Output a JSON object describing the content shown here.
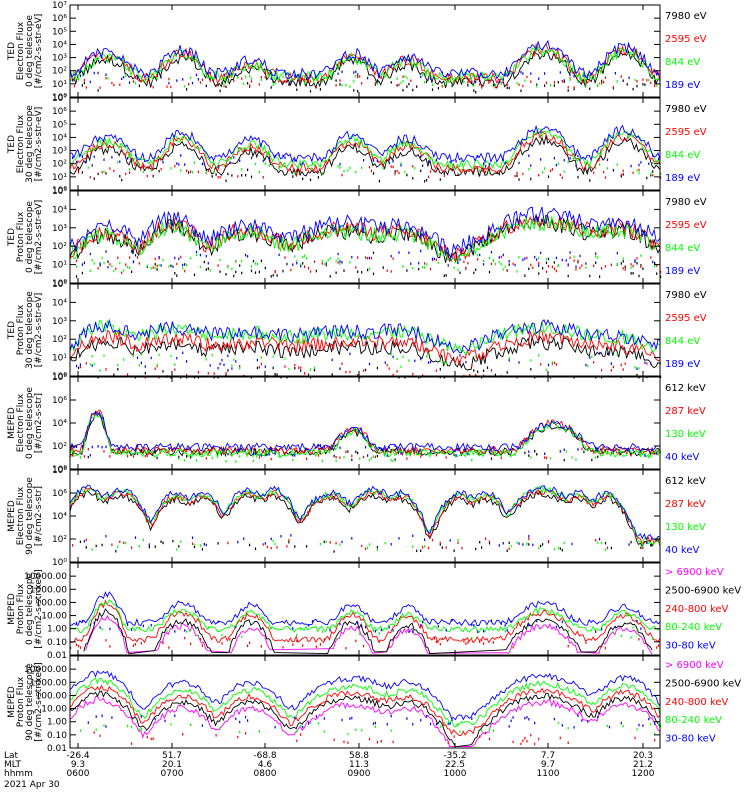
{
  "chart_data": {
    "type": "line",
    "x_footer": {
      "row_labels": [
        "Lat",
        "MLT",
        "hhmm",
        "2021 Apr 30"
      ],
      "ticks": [
        {
          "lat": "-26.4",
          "mlt": "9.3",
          "hhmm": "0600"
        },
        {
          "lat": "51.7",
          "mlt": "20.1",
          "hhmm": "0700"
        },
        {
          "lat": "-68.8",
          "mlt": "4.6",
          "hhmm": "0800"
        },
        {
          "lat": "58.8",
          "mlt": "11.3",
          "hhmm": "0900"
        },
        {
          "lat": "-35.2",
          "mlt": "22.5",
          "hhmm": "1000"
        },
        {
          "lat": "7.7",
          "mlt": "9.7",
          "hhmm": "1100"
        },
        {
          "lat": "20.3",
          "mlt": "21.2",
          "hhmm": "1200"
        }
      ]
    },
    "panels": [
      {
        "ylabel": [
          "TED",
          "Electron Flux",
          "0 deg telescope",
          "[#/cm2-s-str-eV]"
        ],
        "yscale": "log",
        "ylim": [
          1,
          10000000
        ],
        "yticks": [
          {
            "v": 1,
            "t": "10⁰"
          },
          {
            "v": 10,
            "t": "10¹"
          },
          {
            "v": 100,
            "t": "10²"
          },
          {
            "v": 1000,
            "t": "10³"
          },
          {
            "v": 10000,
            "t": "10⁴"
          },
          {
            "v": 100000,
            "t": "10⁵"
          },
          {
            "v": 1000000,
            "t": "10⁶"
          },
          {
            "v": 10000000,
            "t": "10⁷"
          }
        ],
        "base": 60,
        "noise": 7,
        "dots": 1.3,
        "peaks": [
          [
            0.062,
            2600.0,
            0.018
          ],
          [
            0.19,
            4000.0,
            0.015
          ],
          [
            0.307,
            600.0,
            0.016
          ],
          [
            0.478,
            2100.0,
            0.015
          ],
          [
            0.572,
            1200.0,
            0.016
          ],
          [
            0.802,
            8000.0,
            0.018
          ],
          [
            0.94,
            6000.0,
            0.016
          ]
        ],
        "channels": [
          {
            "name": "7980 eV",
            "color": "#000000",
            "scale": 0.25,
            "base_f": 0.2
          },
          {
            "name": "2595 eV",
            "color": "#ff0000",
            "scale": 0.6,
            "base_f": 0.45
          },
          {
            "name": "844 eV",
            "color": "#00ff00",
            "scale": 0.45,
            "base_f": 0.55
          },
          {
            "name": "189 eV",
            "color": "#0000ff",
            "scale": 1.0,
            "base_f": 1.0
          }
        ]
      },
      {
        "ylabel": [
          "TED",
          "Electron Flux",
          "30 deg telescope",
          "[#/cm2-s-str-eV]"
        ],
        "yscale": "log",
        "ylim": [
          1,
          10000000
        ],
        "yticks": [
          {
            "v": 1,
            "t": "10⁰"
          },
          {
            "v": 10,
            "t": "10¹"
          },
          {
            "v": 100,
            "t": "10²"
          },
          {
            "v": 1000,
            "t": "10³"
          },
          {
            "v": 10000,
            "t": "10⁴"
          },
          {
            "v": 100000,
            "t": "10⁵"
          },
          {
            "v": 1000000,
            "t": "10⁶"
          },
          {
            "v": 10000000,
            "t": "10⁷"
          }
        ],
        "base": 300,
        "noise": 5,
        "dots": 1.1,
        "peaks": [
          [
            0.062,
            10000.0,
            0.018
          ],
          [
            0.19,
            20000.0,
            0.015
          ],
          [
            0.307,
            6000.0,
            0.016
          ],
          [
            0.478,
            15000.0,
            0.015
          ],
          [
            0.572,
            8000.0,
            0.016
          ],
          [
            0.802,
            50000.0,
            0.018
          ],
          [
            0.94,
            40000.0,
            0.016
          ]
        ],
        "channels": [
          {
            "name": "7980 eV",
            "color": "#000000",
            "scale": 0.12,
            "base_f": 0.08
          },
          {
            "name": "2595 eV",
            "color": "#ff0000",
            "scale": 0.3,
            "base_f": 0.15
          },
          {
            "name": "844 eV",
            "color": "#00ff00",
            "scale": 0.5,
            "base_f": 0.3
          },
          {
            "name": "189 eV",
            "color": "#0000ff",
            "scale": 1.0,
            "base_f": 1.0
          }
        ]
      },
      {
        "ylabel": [
          "TED",
          "Proton Flux",
          "0 deg telescope",
          "[#/cm2-s-str-eV]"
        ],
        "yscale": "log",
        "ylim": [
          1,
          100000
        ],
        "yticks": [
          {
            "v": 1,
            "t": "10⁰"
          },
          {
            "v": 10,
            "t": "10¹"
          },
          {
            "v": 100,
            "t": "10²"
          },
          {
            "v": 1000,
            "t": "10³"
          },
          {
            "v": 10000,
            "t": "10⁴"
          },
          {
            "v": 100000,
            "t": "10⁵"
          }
        ],
        "base": 35,
        "noise": 8,
        "dots": 1.4,
        "peaks": [
          [
            0.062,
            1000.0,
            0.025
          ],
          [
            0.175,
            3000.0,
            0.022
          ],
          [
            0.3,
            1500.0,
            0.03
          ],
          [
            0.46,
            1800.0,
            0.04
          ],
          [
            0.56,
            1200.0,
            0.03
          ],
          [
            0.8,
            5000.0,
            0.045
          ],
          [
            0.93,
            2000.0,
            0.03
          ]
        ],
        "channels": [
          {
            "name": "7980 eV",
            "color": "#000000",
            "scale": 0.35,
            "base_f": 0.3
          },
          {
            "name": "2595 eV",
            "color": "#ff0000",
            "scale": 0.5,
            "base_f": 0.5
          },
          {
            "name": "844 eV",
            "color": "#00ff00",
            "scale": 0.35,
            "base_f": 0.6
          },
          {
            "name": "189 eV",
            "color": "#0000ff",
            "scale": 1.0,
            "base_f": 1.0
          }
        ]
      },
      {
        "ylabel": [
          "TED",
          "Proton Flux",
          "30 deg telescope",
          "[#/cm2-s-str-eV]"
        ],
        "yscale": "log",
        "ylim": [
          1,
          100000
        ],
        "yticks": [
          {
            "v": 1,
            "t": "10⁰"
          },
          {
            "v": 10,
            "t": "10¹"
          },
          {
            "v": 100,
            "t": "10²"
          },
          {
            "v": 1000,
            "t": "10³"
          },
          {
            "v": 10000,
            "t": "10⁴"
          },
          {
            "v": 100000,
            "t": "10⁵"
          }
        ],
        "base": 12,
        "noise": 6,
        "dots": 1.0,
        "peaks": [
          [
            0.062,
            500.0,
            0.025
          ],
          [
            0.175,
            300.0,
            0.04
          ],
          [
            0.31,
            200.0,
            0.05
          ],
          [
            0.46,
            200.0,
            0.05
          ],
          [
            0.56,
            200.0,
            0.04
          ],
          [
            0.8,
            400.0,
            0.05
          ],
          [
            0.93,
            100.0,
            0.04
          ]
        ],
        "channels": [
          {
            "name": "7980 eV",
            "color": "#000000",
            "scale": 0.15,
            "base_f": 0.15
          },
          {
            "name": "2595 eV",
            "color": "#ff0000",
            "scale": 0.3,
            "base_f": 0.3
          },
          {
            "name": "844 eV",
            "color": "#00ff00",
            "scale": 1.0,
            "base_f": 0.8
          },
          {
            "name": "189 eV",
            "color": "#0000ff",
            "scale": 1.2,
            "base_f": 1.0
          }
        ]
      },
      {
        "ylabel": [
          "MEPED",
          "Electron Flux",
          "0 deg telescope",
          "[#/cm2-s-str]"
        ],
        "yscale": "log",
        "ylim": [
          1,
          100000000
        ],
        "yticks": [
          {
            "v": 1,
            "t": "10⁰"
          },
          {
            "v": 100,
            "t": "10²"
          },
          {
            "v": 10000,
            "t": "10⁴"
          },
          {
            "v": 1000000,
            "t": "10⁶"
          },
          {
            "v": 100000000,
            "t": "10⁸"
          }
        ],
        "base": 80,
        "noise": 5,
        "dots": 0.8,
        "peaks": [
          [
            0.045,
            100000.0,
            0.006
          ],
          [
            0.48,
            3000.0,
            0.012
          ],
          [
            0.82,
            10000.0,
            0.018
          ]
        ],
        "channels": [
          {
            "name": "612 keV",
            "color": "#000000",
            "scale": 0.6,
            "base_f": 0.4
          },
          {
            "name": "287 keV",
            "color": "#ff0000",
            "scale": 1.0,
            "base_f": 0.5
          },
          {
            "name": "130 keV",
            "color": "#00ff00",
            "scale": 0.6,
            "base_f": 0.3
          },
          {
            "name": "40 keV",
            "color": "#0000ff",
            "scale": 1.0,
            "base_f": 1.0
          }
        ]
      },
      {
        "ylabel": [
          "MEPED",
          "Electron Flux",
          "90 deg telescope",
          "[#/cm2-s-str]"
        ],
        "yscale": "log",
        "ylim": [
          1,
          100000000
        ],
        "yticks": [
          {
            "v": 1,
            "t": "10⁰"
          },
          {
            "v": 100,
            "t": "10²"
          },
          {
            "v": 10000,
            "t": "10⁴"
          },
          {
            "v": 1000000,
            "t": "10⁶"
          },
          {
            "v": 100000000,
            "t": "10⁸"
          }
        ],
        "base": 150,
        "noise": 4,
        "dots": 0.7,
        "peaks": [
          [
            0.03,
            3000000.0,
            0.012
          ],
          [
            0.085,
            2000000.0,
            0.014
          ],
          [
            0.18,
            1000000.0,
            0.012
          ],
          [
            0.225,
            1000000.0,
            0.012
          ],
          [
            0.3,
            2000000.0,
            0.012
          ],
          [
            0.345,
            2000000.0,
            0.012
          ],
          [
            0.44,
            1000000.0,
            0.015
          ],
          [
            0.515,
            2000000.0,
            0.015
          ],
          [
            0.56,
            1000000.0,
            0.012
          ],
          [
            0.66,
            1000000.0,
            0.012
          ],
          [
            0.705,
            1000000.0,
            0.012
          ],
          [
            0.8,
            3000000.0,
            0.018
          ],
          [
            0.86,
            1000000.0,
            0.012
          ],
          [
            0.91,
            1000000.0,
            0.012
          ]
        ],
        "channels": [
          {
            "name": "612 keV",
            "color": "#000000",
            "scale": 0.3,
            "base_f": 0.3
          },
          {
            "name": "287 keV",
            "color": "#ff0000",
            "scale": 0.5,
            "base_f": 0.5
          },
          {
            "name": "130 keV",
            "color": "#00ff00",
            "scale": 0.7,
            "base_f": 0.4
          },
          {
            "name": "40 keV",
            "color": "#0000ff",
            "scale": 1.0,
            "base_f": 1.0
          }
        ]
      },
      {
        "ylabel": [
          "MEPED",
          "Proton Flux",
          "0 deg telescope",
          "[#/cm2-s-str-keV]"
        ],
        "yscale": "log",
        "ylim": [
          0.01,
          100000
        ],
        "yticks": [
          {
            "v": 0.01,
            "t": "0.01"
          },
          {
            "v": 0.1,
            "t": "0.10"
          },
          {
            "v": 1,
            "t": "1.00"
          },
          {
            "v": 10,
            "t": "10.00"
          },
          {
            "v": 100,
            "t": "100.00"
          },
          {
            "v": 1000,
            "t": "1000.00"
          },
          {
            "v": 10000,
            "t": "10000.00"
          }
        ],
        "base": 3,
        "noise": 3,
        "dots": 0.9,
        "peaks": [
          [
            0.062,
            400.0,
            0.01
          ],
          [
            0.19,
            80,
            0.015
          ],
          [
            0.307,
            60,
            0.012
          ],
          [
            0.478,
            60,
            0.012
          ],
          [
            0.572,
            40,
            0.012
          ],
          [
            0.802,
            80,
            0.02
          ],
          [
            0.94,
            50,
            0.015
          ]
        ],
        "channels": [
          {
            "name": "> 6900 keV",
            "color": "#ff00ff",
            "scale": 0.02,
            "base_f": 0.0
          },
          {
            "name": "2500-6900 keV",
            "color": "#000000",
            "scale": 0.05,
            "base_f": 0.0
          },
          {
            "name": "240-800 keV",
            "color": "#ff0000",
            "scale": 0.2,
            "base_f": 0.05
          },
          {
            "name": "80-240 keV",
            "color": "#00ff00",
            "scale": 0.3,
            "base_f": 0.3
          },
          {
            "name": "30-80 keV",
            "color": "#0000ff",
            "scale": 1.0,
            "base_f": 1.0
          }
        ]
      },
      {
        "ylabel": [
          "MEPED",
          "Proton Flux",
          "90 deg telescope",
          "[#/cm2-s-str-keV]"
        ],
        "yscale": "log",
        "ylim": [
          0.01,
          100000
        ],
        "yticks": [
          {
            "v": 0.01,
            "t": "0.01"
          },
          {
            "v": 0.1,
            "t": "0.10"
          },
          {
            "v": 1,
            "t": "1.00"
          },
          {
            "v": 10,
            "t": "10.00"
          },
          {
            "v": 100,
            "t": "100.00"
          },
          {
            "v": 1000,
            "t": "1000.00"
          },
          {
            "v": 10000,
            "t": "10000.00"
          }
        ],
        "base": 2,
        "noise": 3,
        "dots": 0.8,
        "peaks": [
          [
            0.05,
            5000.0,
            0.02
          ],
          [
            0.19,
            1000.0,
            0.02
          ],
          [
            0.307,
            1000.0,
            0.02
          ],
          [
            0.478,
            2000.0,
            0.03
          ],
          [
            0.572,
            1000.0,
            0.02
          ],
          [
            0.802,
            3000.0,
            0.03
          ],
          [
            0.94,
            2000.0,
            0.02
          ]
        ],
        "channels": [
          {
            "name": "> 6900 keV",
            "color": "#ff00ff",
            "scale": 0.01,
            "base_f": 0.0
          },
          {
            "name": "2500-6900 keV",
            "color": "#000000",
            "scale": 0.03,
            "base_f": 0.0
          },
          {
            "name": "240-800 keV",
            "color": "#ff0000",
            "scale": 0.08,
            "base_f": 0.05
          },
          {
            "name": "80-240 keV",
            "color": "#00ff00",
            "scale": 0.25,
            "base_f": 0.3
          },
          {
            "name": "30-80 keV",
            "color": "#0000ff",
            "scale": 1.0,
            "base_f": 1.0
          }
        ]
      }
    ]
  }
}
